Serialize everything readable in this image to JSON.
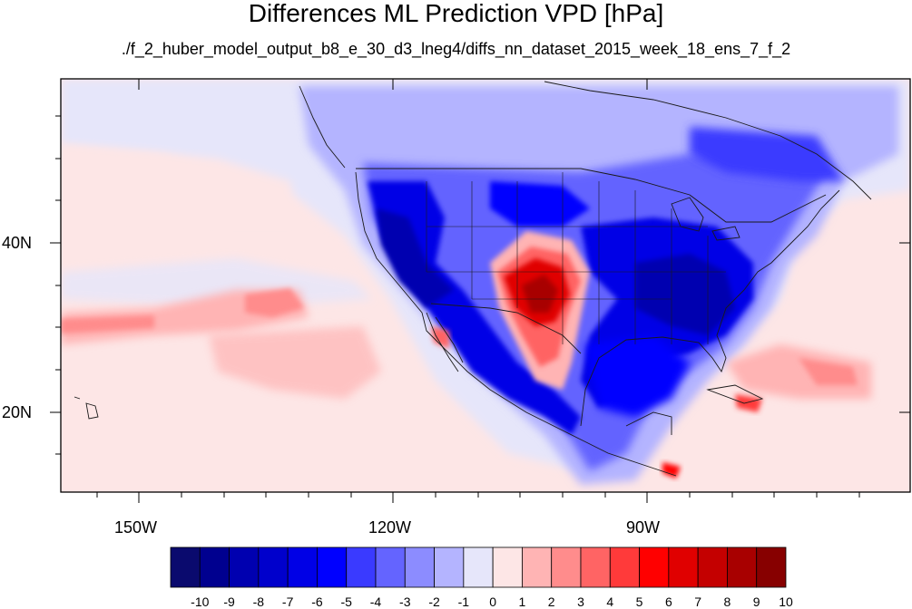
{
  "title": "Differences ML Prediction VPD [hPa]",
  "subtitle": "./f_2_huber_model_output_b8_e_30_d3_lneg4/diffs_nn_dataset_2015_week_18_ens_7_f_2",
  "axes": {
    "x_ticks": [
      "150W",
      "120W",
      "90W"
    ],
    "y_ticks": [
      "40N",
      "20N"
    ]
  },
  "colorbar": {
    "labels": [
      "-10",
      "-9",
      "-8",
      "-7",
      "-6",
      "-5",
      "-4",
      "-3",
      "-2",
      "-1",
      "0",
      "1",
      "2",
      "3",
      "4",
      "5",
      "6",
      "7",
      "8",
      "9",
      "10"
    ],
    "colors": [
      "#0a0a6e",
      "#00008f",
      "#0000b0",
      "#0000cc",
      "#0000e6",
      "#0000ff",
      "#3a3aff",
      "#6464ff",
      "#8c8cff",
      "#b4b4ff",
      "#e6e6fa",
      "#fde6e6",
      "#ffb4b4",
      "#ff8c8c",
      "#ff6464",
      "#ff3a3a",
      "#ff0000",
      "#e00000",
      "#c40000",
      "#a80000",
      "#870000"
    ]
  },
  "map": {
    "projection": "cylindrical-equidistant",
    "lon_range": [
      -160,
      -60
    ],
    "lat_range": [
      10,
      58
    ],
    "field": "VPD difference (hPa)"
  }
}
